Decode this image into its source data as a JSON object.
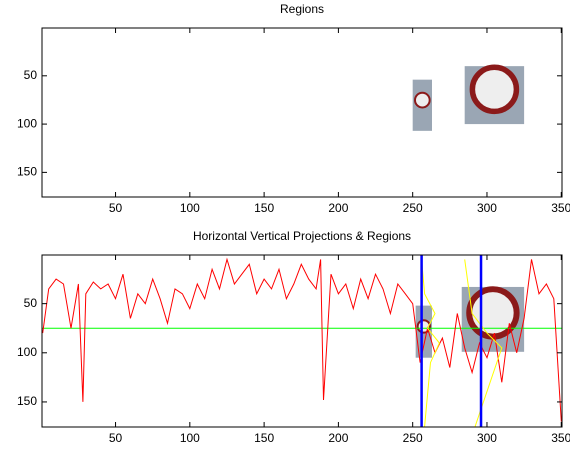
{
  "chart_data": [
    {
      "type": "image",
      "title": "Regions",
      "xlim": [
        0.5,
        350.5
      ],
      "ylim": [
        0.5,
        175.5
      ],
      "y_reversed": true,
      "xticks": [
        50,
        100,
        150,
        200,
        250,
        300,
        350
      ],
      "yticks": [
        50,
        100,
        150
      ],
      "regions": [
        {
          "x": [
            250,
            263
          ],
          "y": [
            54,
            107
          ]
        },
        {
          "x": [
            285,
            325
          ],
          "y": [
            40,
            100
          ]
        }
      ]
    },
    {
      "type": "line",
      "title": "Horizontal Vertical Projections & Regions",
      "xlim": [
        0.5,
        350.5
      ],
      "ylim": [
        0.5,
        175.5
      ],
      "y_reversed": true,
      "xticks": [
        50,
        100,
        150,
        200,
        250,
        300,
        350
      ],
      "yticks": [
        50,
        100,
        150
      ],
      "regions": [
        {
          "x": [
            252,
            263
          ],
          "y": [
            52,
            105
          ]
        },
        {
          "x": [
            283,
            325
          ],
          "y": [
            33,
            99
          ]
        }
      ],
      "series": [
        {
          "color": "#ff0000",
          "x": [
            1,
            5,
            10,
            15,
            20,
            25,
            28,
            30,
            35,
            40,
            45,
            50,
            55,
            60,
            65,
            70,
            75,
            80,
            85,
            90,
            95,
            100,
            105,
            110,
            115,
            120,
            125,
            130,
            135,
            140,
            145,
            150,
            155,
            160,
            165,
            170,
            175,
            180,
            185,
            188,
            190,
            195,
            200,
            205,
            210,
            215,
            220,
            225,
            230,
            235,
            240,
            245,
            250,
            255,
            260,
            265,
            270,
            275,
            280,
            285,
            290,
            295,
            300,
            305,
            310,
            315,
            320,
            325,
            330,
            335,
            340,
            345,
            350
          ],
          "values": [
            80,
            35,
            25,
            30,
            75,
            30,
            150,
            40,
            28,
            35,
            30,
            45,
            20,
            65,
            40,
            50,
            25,
            45,
            70,
            35,
            40,
            55,
            30,
            45,
            15,
            35,
            5,
            30,
            20,
            10,
            40,
            25,
            35,
            15,
            45,
            30,
            10,
            25,
            35,
            5,
            148,
            20,
            40,
            30,
            55,
            25,
            45,
            20,
            35,
            60,
            30,
            40,
            50,
            110,
            75,
            100,
            85,
            115,
            60,
            95,
            120,
            90,
            105,
            80,
            130,
            70,
            100,
            65,
            5,
            40,
            30,
            45,
            170
          ]
        },
        {
          "color": "#ffff00",
          "x": [
            256,
            258,
            265,
            260,
            268,
            262,
            258,
            null,
            285,
            290,
            300,
            310,
            292
          ],
          "values": [
            5,
            40,
            60,
            75,
            90,
            110,
            175,
            null,
            5,
            60,
            80,
            95,
            175
          ]
        }
      ],
      "hlines": [
        {
          "value": 75,
          "color": "#00ff00"
        }
      ],
      "vlines": [
        {
          "value": 256,
          "color": "#0000ff"
        },
        {
          "value": 296,
          "color": "#0000ff"
        }
      ]
    }
  ]
}
